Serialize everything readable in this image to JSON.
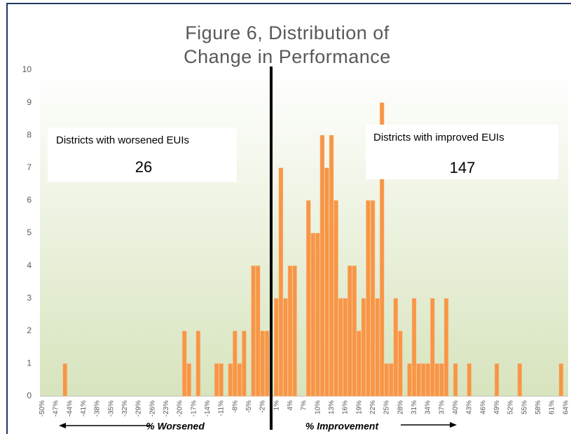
{
  "chart_data": {
    "type": "bar",
    "title": "Figure 6, Distribution of Change in Performance",
    "categories": [
      "-50%",
      null,
      null,
      "-47%",
      null,
      null,
      "-44%",
      null,
      null,
      "-41%",
      null,
      null,
      "-38%",
      null,
      null,
      "-35%",
      null,
      null,
      "-32%",
      null,
      null,
      "-29%",
      null,
      null,
      "-26%",
      null,
      null,
      "-23%",
      null,
      null,
      "-20%",
      null,
      null,
      "-17%",
      null,
      null,
      "-14%",
      null,
      null,
      "-11%",
      null,
      null,
      "-8%",
      null,
      null,
      "-5%",
      null,
      null,
      "-2%",
      null,
      null,
      "1%",
      null,
      null,
      "4%",
      null,
      null,
      "7%",
      null,
      null,
      "10%",
      null,
      null,
      "13%",
      null,
      null,
      "16%",
      null,
      null,
      "19%",
      null,
      null,
      "22%",
      null,
      null,
      "25%",
      null,
      null,
      "28%",
      null,
      null,
      "31%",
      null,
      null,
      "34%",
      null,
      null,
      "37%",
      null,
      null,
      "40%",
      null,
      null,
      "43%",
      null,
      null,
      "46%",
      null,
      null,
      "49%",
      null,
      null,
      "52%",
      null,
      null,
      "55%",
      null,
      null,
      "58%",
      null,
      null,
      "61%",
      null,
      null,
      "64%"
    ],
    "values": [
      0,
      0,
      0,
      0,
      0,
      1,
      0,
      0,
      0,
      0,
      0,
      0,
      0,
      0,
      0,
      0,
      0,
      0,
      0,
      0,
      0,
      0,
      0,
      0,
      0,
      0,
      0,
      0,
      0,
      0,
      0,
      2,
      1,
      0,
      2,
      0,
      0,
      0,
      1,
      1,
      0,
      1,
      2,
      1,
      2,
      0,
      4,
      4,
      2,
      2,
      0,
      3,
      7,
      3,
      4,
      4,
      0,
      0,
      6,
      5,
      5,
      8,
      7,
      8,
      6,
      3,
      3,
      4,
      4,
      2,
      3,
      6,
      6,
      3,
      9,
      1,
      1,
      3,
      2,
      0,
      1,
      3,
      1,
      1,
      1,
      3,
      1,
      1,
      3,
      0,
      1,
      0,
      0,
      1,
      0,
      0,
      0,
      0,
      0,
      1,
      0,
      0,
      0,
      0,
      1,
      0,
      0,
      0,
      0,
      0,
      0,
      0,
      0,
      1,
      0
    ],
    "color": "#f79646",
    "ylim": [
      0,
      10
    ],
    "yticks": [
      0,
      1,
      2,
      3,
      4,
      5,
      6,
      7,
      8,
      9,
      10
    ],
    "boxes": [
      {
        "label": "Districts with worsened EUIs",
        "count": "26"
      },
      {
        "label": "Districts with improved EUIs",
        "count": "147"
      }
    ],
    "annotations": [
      "% Worsened",
      "% Improvement"
    ]
  }
}
